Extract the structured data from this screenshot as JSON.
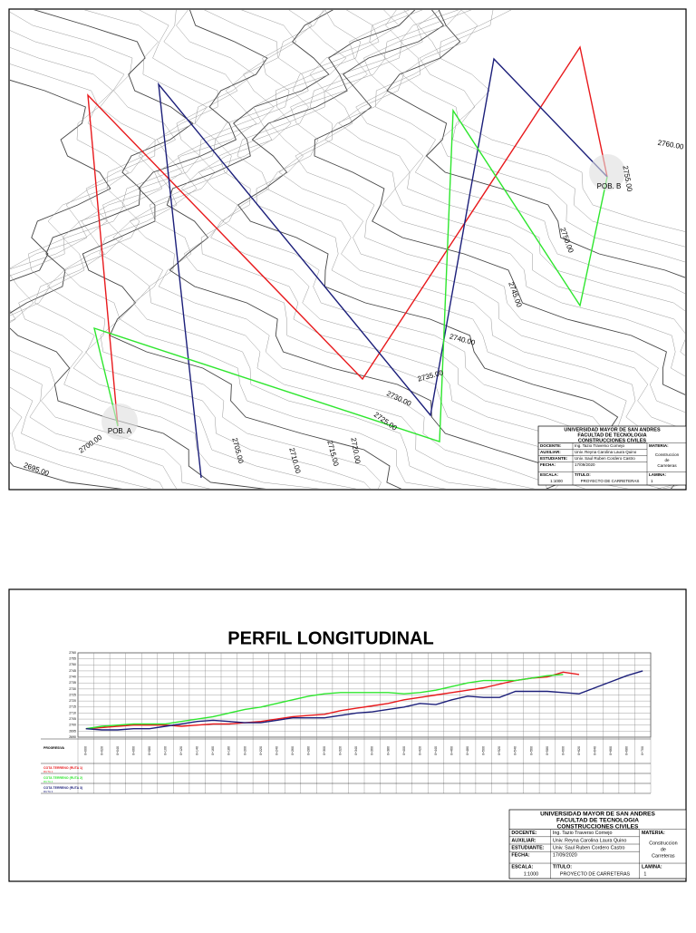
{
  "plan": {
    "contour_labels": [
      "2695.00",
      "2700.00",
      "2705.00",
      "2710.00",
      "2715.00",
      "2720.00",
      "2725.00",
      "2730.00",
      "2735.00",
      "2740.00",
      "2745.00",
      "2750.00",
      "2755.00",
      "2760.00"
    ],
    "start": "POB. A",
    "end": "POB. B"
  },
  "title_block": {
    "university": "UNIVERSIDAD MAYOR DE SAN ANDRES",
    "faculty": "FACULTAD DE TECNOLOGIA",
    "career": "CONSTRUCCIONES CIVILES",
    "docente_label": "DOCENTE:",
    "docente": "Ing. Tazio Traverso Cornejo",
    "materia_label": "MATERIA:",
    "materia": "Construccion de Carreteras",
    "auxiliar_label": "AUXILIAR:",
    "auxiliar": "Univ. Reyna Carolina Laura Quino",
    "estudiante_label": "ESTUDIANTE:",
    "estudiante": "Univ. Saul Ruben Cordero Castro",
    "fecha_label": "FECHA:",
    "fecha": "17/09/2020",
    "escala_label": "ESCALA:",
    "escala": "1:1000",
    "titulo_label": "TITULO:",
    "titulo": "PROYECTO DE CARRETERAS",
    "lamina_label": "LAMINA:",
    "lamina": "1"
  },
  "chart_data": {
    "type": "line",
    "title": "PERFIL LONGITUDINAL",
    "row_labels": [
      "PROGRESIVA",
      "COTA TERRENO (RUTA 1)",
      "COTA TERRENO (RUTA 2)",
      "COTA TERRENO (RUTA 3)"
    ],
    "categories": [
      "0+000",
      "0+020",
      "0+040",
      "0+060",
      "0+080",
      "0+100",
      "0+120",
      "0+140",
      "0+160",
      "0+180",
      "0+200",
      "0+220",
      "0+240",
      "0+260",
      "0+280",
      "0+300",
      "0+320",
      "0+340",
      "0+360",
      "0+380",
      "0+400",
      "0+420",
      "0+440",
      "0+460",
      "0+480",
      "0+500",
      "0+520",
      "0+540",
      "0+560",
      "0+580",
      "0+600",
      "0+620",
      "0+640",
      "0+660",
      "0+680",
      "0+700"
    ],
    "series": [
      {
        "name": "RUTA 1",
        "color": "#e8191c",
        "values": [
          2697,
          2698,
          2699,
          2700,
          2700,
          2700,
          2699,
          2700,
          2701,
          2701,
          2702,
          2703,
          2705,
          2707,
          2708,
          2709,
          2712,
          2714,
          2716,
          2718,
          2721,
          2723,
          2725,
          2727,
          2729,
          2731,
          2734,
          2737,
          2739,
          2740,
          2744,
          2742,
          null,
          null,
          null,
          null
        ]
      },
      {
        "name": "RUTA 2",
        "color": "#2ee62e",
        "values": [
          2697,
          2699,
          2700,
          2701,
          2701,
          2701,
          2703,
          2705,
          2707,
          2710,
          2713,
          2715,
          2718,
          2721,
          2724,
          2726,
          2727,
          2727,
          2727,
          2727,
          2726,
          2727,
          2729,
          2732,
          2735,
          2737,
          2737,
          2737,
          2739,
          2741,
          2742,
          null,
          null,
          null,
          null,
          null
        ]
      },
      {
        "name": "RUTA 3",
        "color": "#1c1f7a",
        "values": [
          2697,
          2696,
          2696,
          2697,
          2697,
          2699,
          2701,
          2703,
          2704,
          2703,
          2702,
          2702,
          2704,
          2706,
          2706,
          2706,
          2708,
          2710,
          2711,
          2713,
          2715,
          2718,
          2717,
          2721,
          2724,
          2723,
          2723,
          2728,
          2728,
          2728,
          2727,
          2726,
          2731,
          2736,
          2741,
          2745
        ]
      }
    ],
    "ylim": [
      2690,
      2760
    ],
    "yticks": [
      2690,
      2695,
      2700,
      2705,
      2710,
      2715,
      2720,
      2725,
      2730,
      2735,
      2740,
      2745,
      2750,
      2755,
      2760
    ],
    "grid": true
  }
}
